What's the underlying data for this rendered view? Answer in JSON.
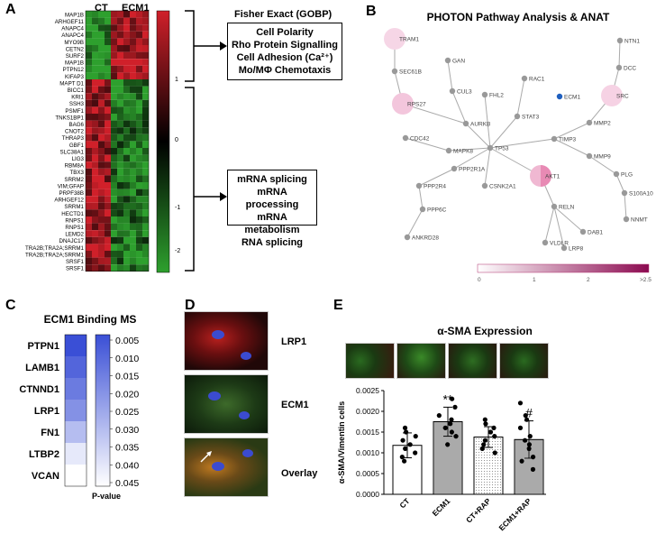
{
  "panel_labels": {
    "a": "A",
    "b": "B",
    "c": "C",
    "d": "D",
    "e": "E"
  },
  "panel_a": {
    "col_labels": [
      "CT",
      "ECM1"
    ],
    "genes": [
      "MAP1B",
      "ARHGEF11",
      "ANAPC4",
      "ANAPC4",
      "MYO9B",
      "CETN2",
      "SURF2",
      "MAP1B",
      "PTPN12",
      "KIFAP3",
      "MAPT D1",
      "BICC1",
      "KRI1",
      "SSH3",
      "PSMF1",
      "TNKS1BP1",
      "BAG6",
      "CNOT2",
      "THRAP3",
      "GBF1",
      "SLC38A1",
      "LIG3",
      "RBM8A",
      "TBX3",
      "SRRM2",
      "VIM;GFAP",
      "PRPF38B",
      "ARHGEF12",
      "SRRM1",
      "HECTD1",
      "RNPS1",
      "RNPS1",
      "LEMD2",
      "DNAJC17",
      "TRA2B;TRA2A;SRRM1",
      "TRA2B;TRA2A;SRRM1",
      "SRSF1",
      "SRSF1"
    ],
    "colorbar_ticks": [
      "1",
      "0",
      "-1",
      "-2"
    ],
    "colors": {
      "high": "#d0202a",
      "mid": "#000000",
      "low": "#2ea02e"
    },
    "fisher_title": "Fisher Exact (GOBP)",
    "box_top_lines": [
      "Cell Polarity",
      "Rho Protein Signalling",
      "Cell Adhesion (Ca²⁺)",
      "Mo/MΦ Chemotaxis"
    ],
    "box_bottom_lines": [
      "mRNA splicing",
      "mRNA processing",
      "mRNA metabolism",
      "RNA splicing"
    ]
  },
  "panel_b": {
    "title": "PHOTON Pathway Analysis & ANAT",
    "scale_ticks": [
      "0",
      "1",
      "2",
      ">2.5"
    ],
    "colors": {
      "node": "#999999",
      "edge": "#aaaaaa",
      "ecm1": "#1f5fbf",
      "scale_low": "#ffffff",
      "scale_high": "#8b0a50"
    }
  },
  "panel_c": {
    "title": "ECM1 Binding MS",
    "proteins": [
      "PTPN1",
      "LAMB1",
      "CTNND1",
      "LRP1",
      "FN1",
      "LTBP2",
      "VCAN"
    ],
    "pvalues": [
      0.005,
      0.01,
      0.015,
      0.02,
      0.03,
      0.04,
      0.045
    ],
    "scale_ticks": [
      "0.005",
      "0.010",
      "0.015",
      "0.020",
      "0.025",
      "0.030",
      "0.035",
      "0.040",
      "0.045"
    ],
    "scale_label": "P-value",
    "colors": {
      "dark": "#3a4fd6",
      "light": "#ffffff"
    }
  },
  "panel_d": {
    "labels": [
      "LRP1",
      "ECM1",
      "Overlay"
    ]
  },
  "panel_e": {
    "title": "α-SMA Expression",
    "chart_data": {
      "type": "bar",
      "categories": [
        "CT",
        "ECM1",
        "CT+RAP",
        "ECM1+RAP"
      ],
      "values": [
        0.00118,
        0.00175,
        0.00138,
        0.00132
      ],
      "errors": [
        0.0003,
        0.00035,
        0.00025,
        0.00045
      ],
      "points": [
        [
          0.0008,
          0.0009,
          0.001,
          0.0011,
          0.0012,
          0.0013,
          0.0014,
          0.0015,
          0.0016
        ],
        [
          0.0012,
          0.0014,
          0.0015,
          0.0016,
          0.0017,
          0.0018,
          0.0019,
          0.0021,
          0.0023
        ],
        [
          0.001,
          0.0011,
          0.0012,
          0.0013,
          0.0014,
          0.0015,
          0.0016,
          0.0017,
          0.0018
        ],
        [
          0.0006,
          0.0008,
          0.0009,
          0.0011,
          0.0012,
          0.0013,
          0.0014,
          0.0016,
          0.0018,
          0.0019,
          0.0022
        ]
      ],
      "annotations": [
        "",
        "**",
        "",
        "#"
      ],
      "ylabel": "α-SMA/Vimentin cells",
      "ylim": [
        0,
        0.0025
      ],
      "yticks": [
        "0.0000",
        "0.0005",
        "0.0010",
        "0.0015",
        "0.0020",
        "0.0025"
      ]
    }
  }
}
